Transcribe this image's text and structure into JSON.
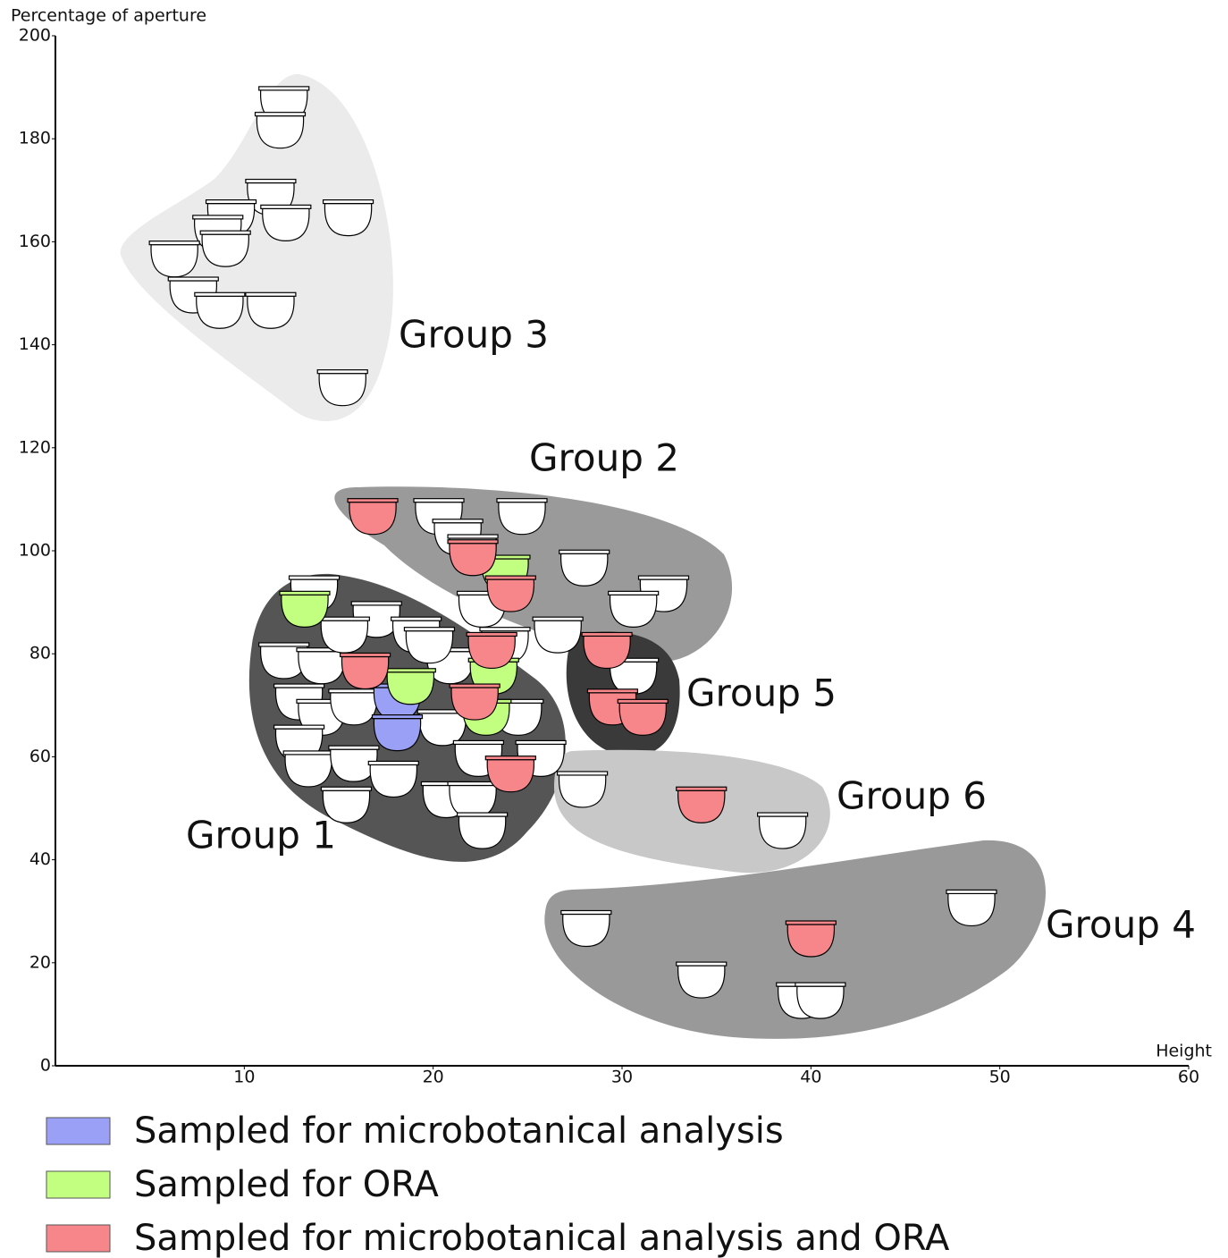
{
  "chart_data": {
    "type": "scatter",
    "x_label": "Height",
    "y_label": "Percentage of aperture",
    "xlim": [
      0,
      60
    ],
    "ylim": [
      0,
      200
    ],
    "xticks": [
      10,
      20,
      30,
      40,
      50,
      60
    ],
    "yticks": [
      0,
      20,
      40,
      60,
      80,
      100,
      120,
      140,
      160,
      180,
      200
    ],
    "annotations": [
      "Group 1",
      "Group 2",
      "Group 3",
      "Group 4",
      "Group 5",
      "Group 6"
    ],
    "series": [
      {
        "color": "#ffffff",
        "x": [
          12.1,
          11.9,
          11.4,
          12.2,
          15.5,
          9.3,
          8.6,
          9,
          6.3,
          7.3,
          8.7,
          11.4,
          15.2,
          20.3,
          24.7,
          21.3,
          22.1,
          28,
          32.2,
          30.6,
          26.6,
          22.6,
          30.6,
          27.9,
          38.5,
          28.1,
          34.2,
          39.5,
          40.5,
          48.5,
          13.7,
          12.1,
          14.1,
          17,
          19.1,
          12.9,
          14.1,
          12.9,
          13.4,
          15.8,
          15.8,
          17.9,
          15.4,
          20.7,
          22.1,
          22.6,
          20.5,
          22.4,
          25.7,
          24.5,
          20.9,
          19.8,
          23.8,
          15.3
        ],
        "values": [
          187,
          182,
          169,
          164,
          165,
          165,
          162,
          159,
          157,
          150,
          147,
          147,
          132,
          107,
          107,
          103,
          100,
          97,
          92,
          89,
          84,
          89,
          76,
          54,
          46,
          27,
          17,
          13,
          13,
          31,
          92,
          79,
          78,
          87,
          84,
          71,
          68,
          63,
          58,
          70,
          59,
          56,
          51,
          52,
          52,
          46,
          66,
          60,
          60,
          68,
          78,
          82,
          82,
          84
        ]
      },
      {
        "name": "Sampled for microbotanical analysis",
        "color": "#9aa0f5",
        "x": [
          18.1,
          18.1
        ],
        "values": [
          71,
          65
        ]
      },
      {
        "name": "Sampled for ORA",
        "color": "#c2ff80",
        "x": [
          23.8,
          13.2,
          18.8,
          23.2,
          22.8
        ],
        "values": [
          96,
          89,
          74,
          76,
          68
        ]
      },
      {
        "name": "Sampled for microbotanical analysis and ORA",
        "color": "#f7868a",
        "x": [
          16.8,
          24.1,
          22.1,
          29.2,
          29.5,
          31.1,
          34.2,
          40,
          16.4,
          23.1,
          22.2,
          24.1
        ],
        "values": [
          107,
          92,
          99,
          81,
          70,
          68,
          51,
          25,
          77,
          81,
          71,
          57
        ]
      }
    ]
  }
}
